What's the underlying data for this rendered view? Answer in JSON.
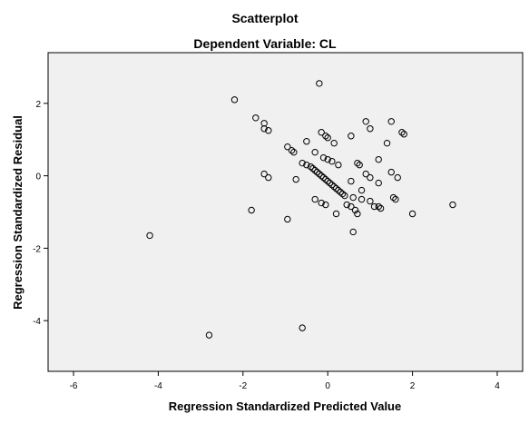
{
  "chart_data": {
    "type": "scatter",
    "title": "Scatterplot",
    "subtitle": "Dependent Variable: CL",
    "xlabel": "Regression Standardized Predicted Value",
    "ylabel": "Regression Standardized Residual",
    "xlim": [
      -6.6,
      4.6
    ],
    "ylim": [
      -5.4,
      3.4
    ],
    "xticks": [
      -6,
      -4,
      -2,
      0,
      2,
      4
    ],
    "yticks": [
      -4,
      -2,
      0,
      2
    ],
    "xtick_labels": [
      "-6",
      "-4",
      "-2",
      "0",
      "2",
      "4"
    ],
    "ytick_labels": [
      "-4",
      "-2",
      "0",
      "2"
    ],
    "grid": false,
    "legend": "none",
    "plot_background": "#f0f0f0",
    "marker_color": "#000000",
    "x": [
      -2.2,
      -0.2,
      -1.7,
      -1.5,
      -1.5,
      -1.4,
      0.9,
      1.5,
      1.0,
      1.75,
      1.8,
      -0.15,
      -0.05,
      0.0,
      -0.5,
      0.15,
      0.55,
      1.4,
      -0.95,
      -0.85,
      -0.8,
      -0.3,
      -0.1,
      0.0,
      0.1,
      0.25,
      1.2,
      0.7,
      0.75,
      -0.6,
      -0.5,
      -0.4,
      -0.35,
      -0.3,
      -0.25,
      -0.2,
      -0.15,
      -0.1,
      -0.05,
      0.0,
      0.05,
      0.1,
      0.15,
      0.2,
      0.25,
      0.3,
      0.35,
      0.4,
      -1.5,
      -1.4,
      -0.75,
      0.55,
      0.9,
      1.0,
      1.2,
      1.5,
      1.65,
      0.8,
      0.6,
      1.2,
      0.45,
      -0.3,
      -0.15,
      -0.05,
      0.2,
      0.55,
      0.65,
      0.7,
      0.8,
      1.0,
      1.1,
      1.25,
      1.55,
      1.6,
      2.0,
      2.95,
      -1.8,
      -0.95,
      -4.2,
      0.6,
      -0.6,
      -2.8
    ],
    "y": [
      2.1,
      2.55,
      1.6,
      1.45,
      1.3,
      1.25,
      1.5,
      1.5,
      1.3,
      1.2,
      1.15,
      1.2,
      1.1,
      1.05,
      0.95,
      0.9,
      1.1,
      0.9,
      0.8,
      0.7,
      0.65,
      0.65,
      0.5,
      0.45,
      0.4,
      0.3,
      0.45,
      0.35,
      0.3,
      0.35,
      0.3,
      0.25,
      0.2,
      0.15,
      0.1,
      0.05,
      0.0,
      -0.05,
      -0.1,
      -0.15,
      -0.2,
      -0.25,
      -0.3,
      -0.35,
      -0.4,
      -0.45,
      -0.5,
      -0.55,
      0.05,
      -0.05,
      -0.1,
      -0.15,
      0.05,
      -0.05,
      -0.2,
      0.1,
      -0.05,
      -0.4,
      -0.6,
      -0.85,
      -0.8,
      -0.65,
      -0.75,
      -0.8,
      -1.05,
      -0.85,
      -0.95,
      -1.05,
      -0.65,
      -0.7,
      -0.85,
      -0.9,
      -0.6,
      -0.65,
      -1.05,
      -0.8,
      -0.95,
      -1.2,
      -1.65,
      -1.55,
      -4.2,
      -4.4
    ]
  }
}
